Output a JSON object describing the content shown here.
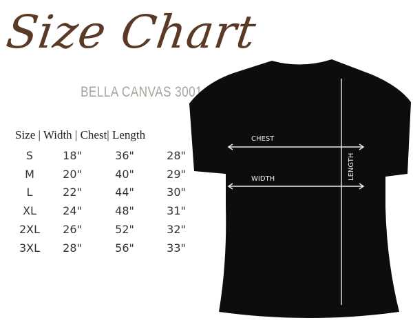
{
  "title": "Size Chart",
  "subtitle": "BELLA CANVAS 3001",
  "table": {
    "header": "Size | Width | Chest| Length",
    "rows": [
      [
        "S",
        "18\"",
        "36\"",
        "28\""
      ],
      [
        "M",
        "20\"",
        "40\"",
        "29\""
      ],
      [
        "L",
        "22\"",
        "44\"",
        "30\""
      ],
      [
        "XL",
        "24\"",
        "48\"",
        "31\""
      ],
      [
        "2XL",
        "26\"",
        "52\"",
        "32\""
      ],
      [
        "3XL",
        "28\"",
        "56\"",
        "33\""
      ]
    ]
  },
  "diagram": {
    "chest": "CHEST",
    "width": "WIDTH",
    "length": "LENGTH",
    "shirt_color": "#0d0d0f",
    "title_color": "#5a3a26"
  }
}
